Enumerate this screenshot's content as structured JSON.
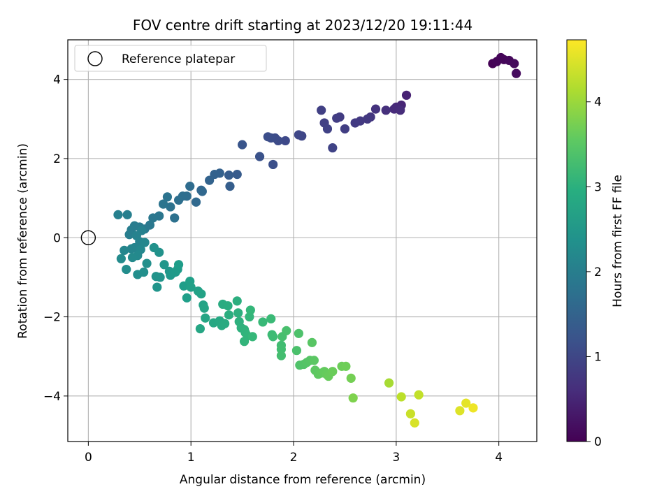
{
  "chart_data": {
    "type": "scatter",
    "title": "FOV centre drift starting at 2023/12/20 19:11:44",
    "xlabel": "Angular distance from reference (arcmin)",
    "ylabel": "Rotation from reference (arcmin)",
    "xlim": [
      -0.2,
      4.37
    ],
    "ylim": [
      -5.15,
      5.0
    ],
    "xticks": [
      0,
      1,
      2,
      3,
      4
    ],
    "yticks": [
      -4,
      -2,
      0,
      2,
      4
    ],
    "grid": true,
    "legend": {
      "placement": "top-left",
      "entries": [
        "Reference platepar"
      ]
    },
    "reference_point": {
      "x": 0,
      "y": 0,
      "label": "Reference platepar"
    },
    "colorbar": {
      "label": "Hours from first FF file",
      "colormap": "viridis",
      "range": [
        0,
        4.73
      ],
      "ticks": [
        0,
        1,
        2,
        3,
        4
      ]
    },
    "points": [
      {
        "x": 3.94,
        "y": 4.4,
        "c": 0.02
      },
      {
        "x": 3.98,
        "y": 4.45,
        "c": 0.04
      },
      {
        "x": 4.02,
        "y": 4.55,
        "c": 0.06
      },
      {
        "x": 4.05,
        "y": 4.5,
        "c": 0.08
      },
      {
        "x": 4.1,
        "y": 4.48,
        "c": 0.1
      },
      {
        "x": 4.15,
        "y": 4.4,
        "c": 0.12
      },
      {
        "x": 4.17,
        "y": 4.15,
        "c": 0.14
      },
      {
        "x": 3.1,
        "y": 3.6,
        "c": 0.45
      },
      {
        "x": 3.05,
        "y": 3.35,
        "c": 0.5
      },
      {
        "x": 3.0,
        "y": 3.3,
        "c": 0.55
      },
      {
        "x": 2.98,
        "y": 3.25,
        "c": 0.58
      },
      {
        "x": 3.04,
        "y": 3.22,
        "c": 0.6
      },
      {
        "x": 2.9,
        "y": 3.22,
        "c": 0.65
      },
      {
        "x": 2.8,
        "y": 3.25,
        "c": 0.7
      },
      {
        "x": 2.75,
        "y": 3.05,
        "c": 0.75
      },
      {
        "x": 2.72,
        "y": 3.0,
        "c": 0.78
      },
      {
        "x": 2.65,
        "y": 2.95,
        "c": 0.8
      },
      {
        "x": 2.6,
        "y": 2.9,
        "c": 0.82
      },
      {
        "x": 2.45,
        "y": 3.05,
        "c": 0.85
      },
      {
        "x": 2.42,
        "y": 3.02,
        "c": 0.86
      },
      {
        "x": 2.5,
        "y": 2.75,
        "c": 0.88
      },
      {
        "x": 2.3,
        "y": 2.9,
        "c": 0.9
      },
      {
        "x": 2.27,
        "y": 3.22,
        "c": 0.91
      },
      {
        "x": 2.33,
        "y": 2.75,
        "c": 0.92
      },
      {
        "x": 2.38,
        "y": 2.27,
        "c": 0.95
      },
      {
        "x": 2.08,
        "y": 2.57,
        "c": 1.0
      },
      {
        "x": 2.05,
        "y": 2.6,
        "c": 1.02
      },
      {
        "x": 1.92,
        "y": 2.45,
        "c": 1.05
      },
      {
        "x": 1.85,
        "y": 2.45,
        "c": 1.08
      },
      {
        "x": 1.82,
        "y": 2.52,
        "c": 1.1
      },
      {
        "x": 1.78,
        "y": 2.52,
        "c": 1.12
      },
      {
        "x": 1.75,
        "y": 2.55,
        "c": 1.14
      },
      {
        "x": 1.8,
        "y": 1.85,
        "c": 1.16
      },
      {
        "x": 1.67,
        "y": 2.05,
        "c": 1.2
      },
      {
        "x": 1.5,
        "y": 2.35,
        "c": 1.25
      },
      {
        "x": 1.45,
        "y": 1.6,
        "c": 1.35
      },
      {
        "x": 1.37,
        "y": 1.58,
        "c": 1.38
      },
      {
        "x": 1.38,
        "y": 1.3,
        "c": 1.4
      },
      {
        "x": 1.28,
        "y": 1.63,
        "c": 1.45
      },
      {
        "x": 1.23,
        "y": 1.6,
        "c": 1.48
      },
      {
        "x": 1.18,
        "y": 1.45,
        "c": 1.5
      },
      {
        "x": 1.1,
        "y": 1.2,
        "c": 1.55
      },
      {
        "x": 1.11,
        "y": 1.17,
        "c": 1.57
      },
      {
        "x": 1.05,
        "y": 0.9,
        "c": 1.6
      },
      {
        "x": 0.99,
        "y": 1.3,
        "c": 1.65
      },
      {
        "x": 0.96,
        "y": 1.05,
        "c": 1.68
      },
      {
        "x": 0.92,
        "y": 1.05,
        "c": 1.7
      },
      {
        "x": 0.88,
        "y": 0.95,
        "c": 1.72
      },
      {
        "x": 0.84,
        "y": 0.5,
        "c": 1.75
      },
      {
        "x": 0.8,
        "y": 0.78,
        "c": 1.78
      },
      {
        "x": 0.77,
        "y": 1.03,
        "c": 1.8
      },
      {
        "x": 0.73,
        "y": 0.85,
        "c": 1.82
      },
      {
        "x": 0.69,
        "y": 0.55,
        "c": 1.85
      },
      {
        "x": 0.63,
        "y": 0.5,
        "c": 1.88
      },
      {
        "x": 0.6,
        "y": 0.32,
        "c": 1.9
      },
      {
        "x": 0.55,
        "y": 0.22,
        "c": 1.92
      },
      {
        "x": 0.5,
        "y": 0.27,
        "c": 1.95
      },
      {
        "x": 0.45,
        "y": 0.3,
        "c": 1.98
      },
      {
        "x": 0.42,
        "y": 0.2,
        "c": 2.0
      },
      {
        "x": 0.4,
        "y": 0.08,
        "c": 2.02
      },
      {
        "x": 0.38,
        "y": 0.58,
        "c": 2.04
      },
      {
        "x": 0.29,
        "y": 0.58,
        "c": 2.06
      },
      {
        "x": 0.52,
        "y": 0.18,
        "c": 2.08
      },
      {
        "x": 0.47,
        "y": 0.05,
        "c": 2.1
      },
      {
        "x": 0.5,
        "y": -0.1,
        "c": 2.12
      },
      {
        "x": 0.45,
        "y": -0.25,
        "c": 2.14
      },
      {
        "x": 0.42,
        "y": -0.28,
        "c": 2.16
      },
      {
        "x": 0.35,
        "y": -0.32,
        "c": 2.18
      },
      {
        "x": 0.55,
        "y": -0.12,
        "c": 2.2
      },
      {
        "x": 0.51,
        "y": -0.3,
        "c": 2.22
      },
      {
        "x": 0.48,
        "y": -0.45,
        "c": 2.24
      },
      {
        "x": 0.43,
        "y": -0.5,
        "c": 2.26
      },
      {
        "x": 0.32,
        "y": -0.53,
        "c": 2.28
      },
      {
        "x": 0.37,
        "y": -0.8,
        "c": 2.3
      },
      {
        "x": 0.48,
        "y": -0.93,
        "c": 2.32
      },
      {
        "x": 0.54,
        "y": -0.87,
        "c": 2.34
      },
      {
        "x": 0.57,
        "y": -0.65,
        "c": 2.36
      },
      {
        "x": 0.64,
        "y": -0.25,
        "c": 2.38
      },
      {
        "x": 0.69,
        "y": -0.37,
        "c": 2.4
      },
      {
        "x": 0.66,
        "y": -0.98,
        "c": 2.42
      },
      {
        "x": 0.7,
        "y": -1.0,
        "c": 2.44
      },
      {
        "x": 0.67,
        "y": -1.25,
        "c": 2.46
      },
      {
        "x": 0.74,
        "y": -0.68,
        "c": 2.48
      },
      {
        "x": 0.79,
        "y": -0.85,
        "c": 2.5
      },
      {
        "x": 0.8,
        "y": -0.95,
        "c": 2.52
      },
      {
        "x": 0.82,
        "y": -0.9,
        "c": 2.54
      },
      {
        "x": 0.85,
        "y": -0.87,
        "c": 2.56
      },
      {
        "x": 0.87,
        "y": -0.8,
        "c": 2.58
      },
      {
        "x": 0.88,
        "y": -0.68,
        "c": 2.6
      },
      {
        "x": 0.93,
        "y": -1.22,
        "c": 2.62
      },
      {
        "x": 0.96,
        "y": -1.52,
        "c": 2.64
      },
      {
        "x": 0.99,
        "y": -1.1,
        "c": 2.66
      },
      {
        "x": 1.0,
        "y": -1.25,
        "c": 2.68
      },
      {
        "x": 1.07,
        "y": -1.35,
        "c": 2.7
      },
      {
        "x": 1.1,
        "y": -1.42,
        "c": 2.72
      },
      {
        "x": 1.12,
        "y": -1.7,
        "c": 2.74
      },
      {
        "x": 1.13,
        "y": -1.78,
        "c": 2.76
      },
      {
        "x": 1.14,
        "y": -2.03,
        "c": 2.78
      },
      {
        "x": 1.09,
        "y": -2.3,
        "c": 2.8
      },
      {
        "x": 1.22,
        "y": -2.15,
        "c": 2.82
      },
      {
        "x": 1.28,
        "y": -2.1,
        "c": 2.84
      },
      {
        "x": 1.3,
        "y": -2.22,
        "c": 2.86
      },
      {
        "x": 1.33,
        "y": -2.17,
        "c": 2.88
      },
      {
        "x": 1.31,
        "y": -1.68,
        "c": 2.9
      },
      {
        "x": 1.36,
        "y": -1.72,
        "c": 2.92
      },
      {
        "x": 1.37,
        "y": -1.95,
        "c": 2.94
      },
      {
        "x": 1.45,
        "y": -1.6,
        "c": 2.96
      },
      {
        "x": 1.46,
        "y": -1.9,
        "c": 2.98
      },
      {
        "x": 1.47,
        "y": -2.12,
        "c": 3.0
      },
      {
        "x": 1.49,
        "y": -2.28,
        "c": 3.02
      },
      {
        "x": 1.52,
        "y": -2.32,
        "c": 3.04
      },
      {
        "x": 1.53,
        "y": -2.4,
        "c": 3.06
      },
      {
        "x": 1.55,
        "y": -2.48,
        "c": 3.08
      },
      {
        "x": 1.52,
        "y": -2.62,
        "c": 3.1
      },
      {
        "x": 1.57,
        "y": -2.0,
        "c": 3.12
      },
      {
        "x": 1.58,
        "y": -1.83,
        "c": 3.14
      },
      {
        "x": 1.6,
        "y": -2.5,
        "c": 3.16
      },
      {
        "x": 1.7,
        "y": -2.13,
        "c": 3.18
      },
      {
        "x": 1.78,
        "y": -2.05,
        "c": 3.2
      },
      {
        "x": 1.79,
        "y": -2.45,
        "c": 3.22
      },
      {
        "x": 1.8,
        "y": -2.5,
        "c": 3.24
      },
      {
        "x": 1.88,
        "y": -2.72,
        "c": 3.26
      },
      {
        "x": 1.88,
        "y": -2.82,
        "c": 3.28
      },
      {
        "x": 1.88,
        "y": -2.98,
        "c": 3.3
      },
      {
        "x": 1.89,
        "y": -2.5,
        "c": 3.32
      },
      {
        "x": 1.93,
        "y": -2.35,
        "c": 3.34
      },
      {
        "x": 2.03,
        "y": -2.85,
        "c": 3.36
      },
      {
        "x": 2.05,
        "y": -2.42,
        "c": 3.38
      },
      {
        "x": 2.06,
        "y": -3.22,
        "c": 3.4
      },
      {
        "x": 2.1,
        "y": -3.2,
        "c": 3.42
      },
      {
        "x": 2.13,
        "y": -3.15,
        "c": 3.44
      },
      {
        "x": 2.16,
        "y": -3.1,
        "c": 3.46
      },
      {
        "x": 2.18,
        "y": -2.65,
        "c": 3.48
      },
      {
        "x": 2.2,
        "y": -3.1,
        "c": 3.5
      },
      {
        "x": 2.21,
        "y": -3.35,
        "c": 3.52
      },
      {
        "x": 2.24,
        "y": -3.45,
        "c": 3.54
      },
      {
        "x": 2.27,
        "y": -3.42,
        "c": 3.56
      },
      {
        "x": 2.3,
        "y": -3.38,
        "c": 3.58
      },
      {
        "x": 2.32,
        "y": -3.45,
        "c": 3.6
      },
      {
        "x": 2.34,
        "y": -3.5,
        "c": 3.62
      },
      {
        "x": 2.38,
        "y": -3.38,
        "c": 3.64
      },
      {
        "x": 2.47,
        "y": -3.25,
        "c": 3.66
      },
      {
        "x": 2.51,
        "y": -3.25,
        "c": 3.68
      },
      {
        "x": 2.56,
        "y": -3.55,
        "c": 3.72
      },
      {
        "x": 2.58,
        "y": -4.05,
        "c": 3.8
      },
      {
        "x": 2.93,
        "y": -3.67,
        "c": 4.1
      },
      {
        "x": 3.05,
        "y": -4.02,
        "c": 4.25
      },
      {
        "x": 3.14,
        "y": -4.45,
        "c": 4.35
      },
      {
        "x": 3.18,
        "y": -4.68,
        "c": 4.45
      },
      {
        "x": 3.22,
        "y": -3.97,
        "c": 4.3
      },
      {
        "x": 3.62,
        "y": -4.37,
        "c": 4.5
      },
      {
        "x": 3.68,
        "y": -4.18,
        "c": 4.55
      },
      {
        "x": 3.75,
        "y": -4.3,
        "c": 4.62
      }
    ]
  }
}
